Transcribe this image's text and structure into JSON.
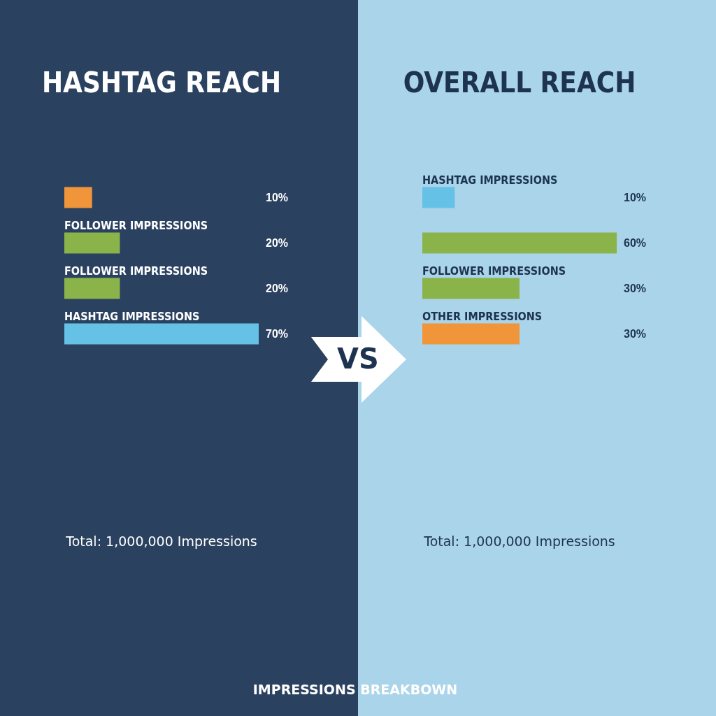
{
  "chart_data": [
    {
      "type": "bar",
      "orientation": "horizontal",
      "title": "HASHTAG REACH",
      "categories": [
        null,
        "FOLLOWER IMPRESSIONS",
        "FOLLOWER IMPRESSIONS",
        "HASHTAG IMPRESSIONS"
      ],
      "values": [
        10,
        20,
        20,
        70
      ],
      "colors": [
        "#f0953a",
        "#8ab44a",
        "#8ab44a",
        "#66c1e6"
      ],
      "value_labels": [
        "10%",
        "20%",
        "20%",
        "70%"
      ],
      "annotations": [
        "Total: 1,000,000 Impressions",
        "VS"
      ]
    },
    {
      "type": "bar",
      "orientation": "horizontal",
      "title": "OVERALL REACH",
      "categories": [
        "HASHTAG IMPRESSIONS",
        null,
        "FOLLOWER IMPRESSIONS",
        "OTHER IMPRESSIONS"
      ],
      "values": [
        10,
        60,
        30,
        30
      ],
      "colors": [
        "#66c1e6",
        "#8ab44a",
        "#8ab44a",
        "#f0953a"
      ],
      "value_labels": [
        "10%",
        "60%",
        "30%",
        "30%"
      ],
      "annotations": [
        "Total: 1,000,000 Impressions",
        "IMPRESSIONS BREAKBOWN"
      ]
    }
  ]
}
